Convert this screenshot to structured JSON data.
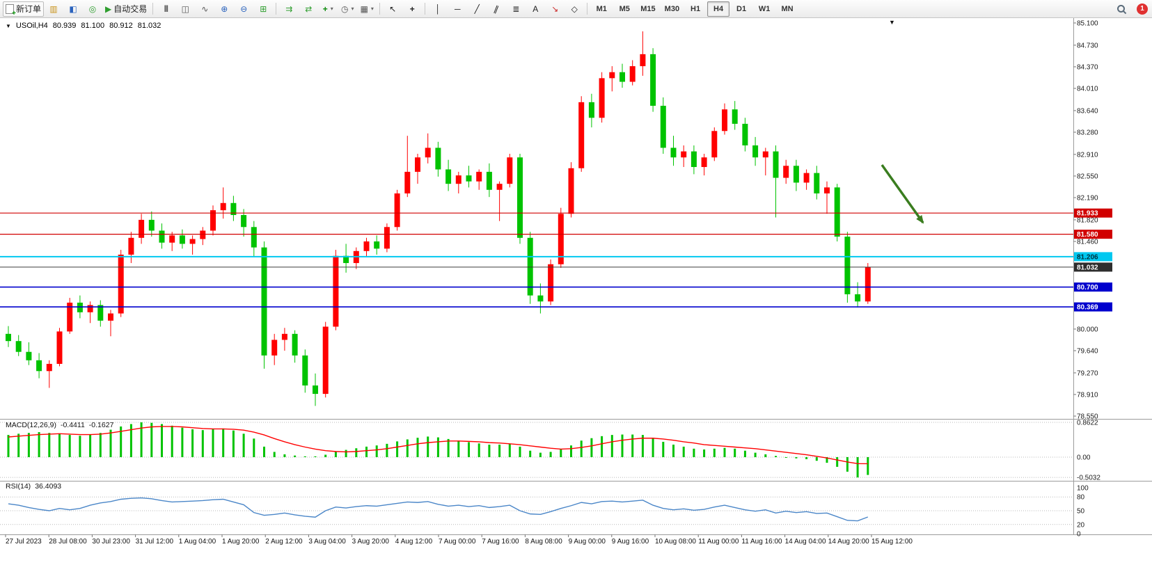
{
  "toolbar": {
    "new_order_label": "新订单",
    "auto_trading_label": "自动交易",
    "timeframes": [
      "M1",
      "M5",
      "M15",
      "M30",
      "H1",
      "H4",
      "D1",
      "W1",
      "MN"
    ],
    "active_timeframe": "H4",
    "notification_badge": "1",
    "icons": [
      "new-order-icon",
      "charts-icon",
      "market-watch-icon",
      "navigator-icon",
      "auto-trading-icon",
      "bar-chart-icon",
      "candlestick-icon",
      "line-chart-icon",
      "zoom-in-icon",
      "zoom-out-icon",
      "tile-windows-icon",
      "auto-scroll-icon",
      "chart-shift-icon",
      "indicators-icon",
      "periods-icon",
      "templates-icon",
      "cursor-icon",
      "crosshair-icon",
      "vertical-line-icon",
      "horizontal-line-icon",
      "trendline-icon",
      "channel-icon",
      "fibonacci-icon",
      "text-icon",
      "arrow-tool-icon",
      "shapes-icon",
      "search-icon"
    ],
    "glyphs": {
      "marker": "▼",
      "charts": "▥",
      "market_watch": "◧",
      "navigator": "◎",
      "auto_play": "▶",
      "bar_chart": "|||",
      "candles": "◫",
      "line_chart": "∿",
      "zoom_in": "⊕",
      "zoom_out": "⊖",
      "tile": "⊞",
      "auto_scroll": "⇉",
      "shift": "⇄",
      "indicators": "+",
      "periods": "◷",
      "templates": "▦",
      "cursor": "↖",
      "crosshair": "+",
      "vline": "│",
      "hline": "─",
      "trend": "╱",
      "channel": "∥",
      "fibo": "≣",
      "text": "A",
      "arrow_tool": "↘",
      "shapes": "◇",
      "caret": "▾"
    }
  },
  "chart": {
    "symbol": "USOil,H4",
    "open": "80.939",
    "high": "81.100",
    "low": "80.912",
    "close": "81.032"
  },
  "chart_data": {
    "type": "candlestick",
    "title": "USOil H4",
    "background": "#ffffff",
    "colors": {
      "up": "#ff0000",
      "down": "#00c300"
    },
    "y_axis": {
      "range": [
        78.55,
        85.1
      ],
      "ticks": [
        85.1,
        84.73,
        84.37,
        84.01,
        83.64,
        83.28,
        82.91,
        82.55,
        82.19,
        81.82,
        81.46,
        80.0,
        79.64,
        79.27,
        78.91,
        78.55
      ]
    },
    "x_labels": [
      "27 Jul 2023",
      "28 Jul 08:00",
      "30 Jul 23:00",
      "31 Jul 12:00",
      "1 Aug 04:00",
      "1 Aug 20:00",
      "2 Aug 12:00",
      "3 Aug 04:00",
      "3 Aug 20:00",
      "4 Aug 12:00",
      "7 Aug 00:00",
      "7 Aug 16:00",
      "8 Aug 08:00",
      "9 Aug 00:00",
      "9 Aug 16:00",
      "10 Aug 08:00",
      "11 Aug 00:00",
      "11 Aug 16:00",
      "14 Aug 04:00",
      "14 Aug 20:00",
      "15 Aug 12:00"
    ],
    "candles": [
      [
        79.92,
        80.05,
        79.7,
        79.8
      ],
      [
        79.8,
        79.9,
        79.55,
        79.62
      ],
      [
        79.62,
        79.78,
        79.4,
        79.48
      ],
      [
        79.48,
        79.6,
        79.18,
        79.3
      ],
      [
        79.3,
        79.48,
        79.02,
        79.42
      ],
      [
        79.42,
        80.02,
        79.38,
        79.96
      ],
      [
        79.96,
        80.52,
        79.92,
        80.44
      ],
      [
        80.44,
        80.56,
        80.18,
        80.28
      ],
      [
        80.28,
        80.46,
        80.1,
        80.4
      ],
      [
        80.4,
        80.48,
        80.04,
        80.14
      ],
      [
        80.14,
        80.32,
        79.88,
        80.26
      ],
      [
        80.26,
        81.32,
        80.2,
        81.24
      ],
      [
        81.24,
        81.62,
        81.1,
        81.52
      ],
      [
        81.52,
        81.92,
        81.42,
        81.82
      ],
      [
        81.82,
        81.96,
        81.54,
        81.64
      ],
      [
        81.64,
        81.76,
        81.34,
        81.44
      ],
      [
        81.44,
        81.62,
        81.3,
        81.56
      ],
      [
        81.56,
        81.66,
        81.34,
        81.42
      ],
      [
        81.42,
        81.56,
        81.24,
        81.5
      ],
      [
        81.5,
        81.7,
        81.4,
        81.64
      ],
      [
        81.64,
        82.06,
        81.56,
        81.98
      ],
      [
        81.98,
        82.36,
        81.84,
        82.1
      ],
      [
        82.1,
        82.22,
        81.8,
        81.9
      ],
      [
        81.9,
        82.0,
        81.54,
        81.7
      ],
      [
        81.7,
        81.8,
        81.2,
        81.36
      ],
      [
        81.36,
        81.46,
        79.34,
        79.56
      ],
      [
        79.56,
        79.92,
        79.4,
        79.82
      ],
      [
        79.82,
        80.02,
        79.64,
        79.92
      ],
      [
        79.92,
        79.98,
        79.44,
        79.56
      ],
      [
        79.56,
        79.66,
        78.94,
        79.06
      ],
      [
        79.06,
        79.26,
        78.72,
        78.92
      ],
      [
        78.92,
        80.12,
        78.86,
        80.04
      ],
      [
        80.04,
        81.32,
        79.98,
        81.22
      ],
      [
        81.22,
        81.42,
        80.94,
        81.1
      ],
      [
        81.1,
        81.36,
        81.0,
        81.3
      ],
      [
        81.3,
        81.52,
        81.2,
        81.46
      ],
      [
        81.46,
        81.56,
        81.24,
        81.34
      ],
      [
        81.34,
        81.76,
        81.28,
        81.7
      ],
      [
        81.7,
        82.32,
        81.64,
        82.26
      ],
      [
        82.26,
        83.22,
        82.2,
        82.62
      ],
      [
        82.62,
        82.92,
        82.42,
        82.86
      ],
      [
        82.86,
        83.26,
        82.76,
        83.02
      ],
      [
        83.02,
        83.12,
        82.54,
        82.66
      ],
      [
        82.66,
        82.82,
        82.3,
        82.42
      ],
      [
        82.42,
        82.62,
        82.26,
        82.56
      ],
      [
        82.56,
        82.72,
        82.36,
        82.46
      ],
      [
        82.46,
        82.66,
        82.32,
        82.62
      ],
      [
        82.62,
        82.76,
        82.2,
        82.32
      ],
      [
        82.32,
        82.46,
        81.8,
        82.42
      ],
      [
        82.42,
        82.92,
        82.36,
        82.86
      ],
      [
        82.86,
        82.92,
        81.42,
        81.52
      ],
      [
        81.52,
        81.62,
        80.42,
        80.56
      ],
      [
        80.56,
        80.76,
        80.26,
        80.46
      ],
      [
        80.46,
        81.16,
        80.4,
        81.08
      ],
      [
        81.08,
        82.02,
        81.02,
        81.92
      ],
      [
        81.92,
        82.78,
        81.86,
        82.68
      ],
      [
        82.68,
        83.88,
        82.62,
        83.78
      ],
      [
        83.78,
        83.92,
        83.36,
        83.52
      ],
      [
        83.52,
        84.28,
        83.44,
        84.18
      ],
      [
        84.18,
        84.38,
        83.96,
        84.28
      ],
      [
        84.28,
        84.42,
        84.02,
        84.12
      ],
      [
        84.12,
        84.48,
        84.06,
        84.38
      ],
      [
        84.38,
        84.96,
        84.22,
        84.58
      ],
      [
        84.58,
        84.68,
        83.62,
        83.72
      ],
      [
        83.72,
        83.86,
        82.92,
        83.02
      ],
      [
        83.02,
        83.22,
        82.72,
        82.86
      ],
      [
        82.86,
        83.06,
        82.7,
        82.96
      ],
      [
        82.96,
        83.06,
        82.58,
        82.7
      ],
      [
        82.7,
        82.92,
        82.56,
        82.86
      ],
      [
        82.86,
        83.36,
        82.8,
        83.3
      ],
      [
        83.3,
        83.76,
        83.24,
        83.66
      ],
      [
        83.66,
        83.8,
        83.32,
        83.42
      ],
      [
        83.42,
        83.52,
        82.96,
        83.06
      ],
      [
        83.06,
        83.2,
        82.72,
        82.86
      ],
      [
        82.86,
        83.02,
        82.56,
        82.96
      ],
      [
        82.96,
        83.06,
        81.86,
        82.52
      ],
      [
        82.52,
        82.82,
        82.42,
        82.72
      ],
      [
        82.72,
        82.82,
        82.3,
        82.44
      ],
      [
        82.44,
        82.66,
        82.32,
        82.6
      ],
      [
        82.6,
        82.72,
        82.16,
        82.26
      ],
      [
        82.26,
        82.46,
        81.92,
        82.36
      ],
      [
        82.36,
        82.42,
        81.46,
        81.54
      ],
      [
        81.54,
        81.62,
        80.44,
        80.58
      ],
      [
        80.58,
        80.78,
        80.36,
        80.46
      ],
      [
        80.46,
        81.1,
        80.42,
        81.032
      ]
    ],
    "hlines": [
      {
        "price": 81.933,
        "color": "#d10000",
        "width": 1.2
      },
      {
        "price": 81.58,
        "color": "#d10000",
        "width": 1.2
      },
      {
        "price": 81.206,
        "color": "#00c8f0",
        "width": 2
      },
      {
        "price": 81.032,
        "color": "#3c3c3c",
        "width": 1
      },
      {
        "price": 80.7,
        "color": "#0000cd",
        "width": 1.6
      },
      {
        "price": 80.369,
        "color": "#0000cd",
        "width": 1.6
      }
    ],
    "price_tags": [
      {
        "price": 81.933,
        "label": "81.933",
        "bg": "#d10000",
        "fg": "#ffffff"
      },
      {
        "price": 81.58,
        "label": "81.580",
        "bg": "#d10000",
        "fg": "#ffffff"
      },
      {
        "price": 81.206,
        "label": "81.206",
        "bg": "#00c8f0",
        "fg": "#00313d"
      },
      {
        "price": 81.032,
        "label": "81.032",
        "bg": "#2e2e2e",
        "fg": "#ffffff"
      },
      {
        "price": 80.7,
        "label": "80.700",
        "bg": "#0000cd",
        "fg": "#ffffff"
      },
      {
        "price": 80.369,
        "label": "80.369",
        "bg": "#0000cd",
        "fg": "#ffffff"
      }
    ],
    "arrow": {
      "color": "#3a7d1f"
    },
    "indicators": {
      "macd": {
        "title": "MACD(12,26,9)",
        "value_main": "-0.4411",
        "value_signal": "-0.1627",
        "hist_color": "#00c300",
        "signal_color": "#ff0000",
        "axis": [
          {
            "v": 0.8622,
            "label": "0.8622"
          },
          {
            "v": 0,
            "label": "0.00"
          },
          {
            "v": -0.5032,
            "label": "-0.5032"
          }
        ],
        "histogram": [
          0.55,
          0.58,
          0.6,
          0.62,
          0.6,
          0.58,
          0.55,
          0.53,
          0.55,
          0.6,
          0.68,
          0.76,
          0.82,
          0.8622,
          0.85,
          0.82,
          0.78,
          0.73,
          0.69,
          0.67,
          0.69,
          0.71,
          0.66,
          0.58,
          0.46,
          0.26,
          0.13,
          0.07,
          0.04,
          0.02,
          0.02,
          0.06,
          0.13,
          0.18,
          0.22,
          0.26,
          0.29,
          0.33,
          0.39,
          0.44,
          0.48,
          0.51,
          0.49,
          0.45,
          0.41,
          0.37,
          0.34,
          0.31,
          0.31,
          0.33,
          0.26,
          0.16,
          0.11,
          0.13,
          0.19,
          0.29,
          0.41,
          0.47,
          0.52,
          0.55,
          0.56,
          0.56,
          0.55,
          0.48,
          0.38,
          0.31,
          0.26,
          0.21,
          0.19,
          0.21,
          0.23,
          0.21,
          0.16,
          0.11,
          0.07,
          0.03,
          0.0,
          -0.03,
          -0.05,
          -0.09,
          -0.14,
          -0.24,
          -0.36,
          -0.5032,
          -0.4411
        ],
        "signal": [
          0.5,
          0.52,
          0.54,
          0.56,
          0.57,
          0.58,
          0.57,
          0.56,
          0.56,
          0.57,
          0.6,
          0.64,
          0.68,
          0.72,
          0.75,
          0.76,
          0.76,
          0.75,
          0.73,
          0.71,
          0.7,
          0.7,
          0.69,
          0.67,
          0.62,
          0.55,
          0.46,
          0.38,
          0.31,
          0.25,
          0.2,
          0.16,
          0.14,
          0.13,
          0.14,
          0.16,
          0.18,
          0.21,
          0.25,
          0.29,
          0.33,
          0.36,
          0.38,
          0.4,
          0.4,
          0.39,
          0.38,
          0.36,
          0.35,
          0.33,
          0.31,
          0.28,
          0.25,
          0.22,
          0.2,
          0.21,
          0.24,
          0.28,
          0.33,
          0.38,
          0.42,
          0.45,
          0.47,
          0.47,
          0.45,
          0.42,
          0.38,
          0.35,
          0.31,
          0.29,
          0.27,
          0.25,
          0.23,
          0.21,
          0.18,
          0.15,
          0.12,
          0.09,
          0.06,
          0.02,
          -0.02,
          -0.07,
          -0.12,
          -0.16,
          -0.1627
        ]
      },
      "rsi": {
        "title": "RSI(14)",
        "value": "36.4093",
        "line_color": "#4a86c8",
        "axis": [
          {
            "v": 100,
            "label": "100",
            "level": false
          },
          {
            "v": 80,
            "label": "80",
            "level": true
          },
          {
            "v": 50,
            "label": "50",
            "level": true
          },
          {
            "v": 20,
            "label": "20",
            "level": true
          },
          {
            "v": 0,
            "label": "0",
            "level": false
          }
        ],
        "values": [
          65,
          62,
          57,
          53,
          50,
          55,
          52,
          55,
          62,
          67,
          70,
          75,
          77,
          78,
          76,
          72,
          69,
          70,
          71,
          72,
          74,
          75,
          69,
          63,
          46,
          40,
          42,
          45,
          41,
          38,
          36,
          50,
          58,
          56,
          59,
          61,
          60,
          63,
          66,
          69,
          68,
          70,
          64,
          60,
          62,
          59,
          61,
          57,
          59,
          62,
          50,
          43,
          42,
          48,
          55,
          61,
          68,
          65,
          70,
          71,
          69,
          71,
          73,
          62,
          55,
          52,
          54,
          51,
          53,
          58,
          62,
          57,
          52,
          49,
          52,
          45,
          49,
          46,
          48,
          44,
          45,
          37,
          29,
          28,
          36.41
        ]
      }
    }
  }
}
